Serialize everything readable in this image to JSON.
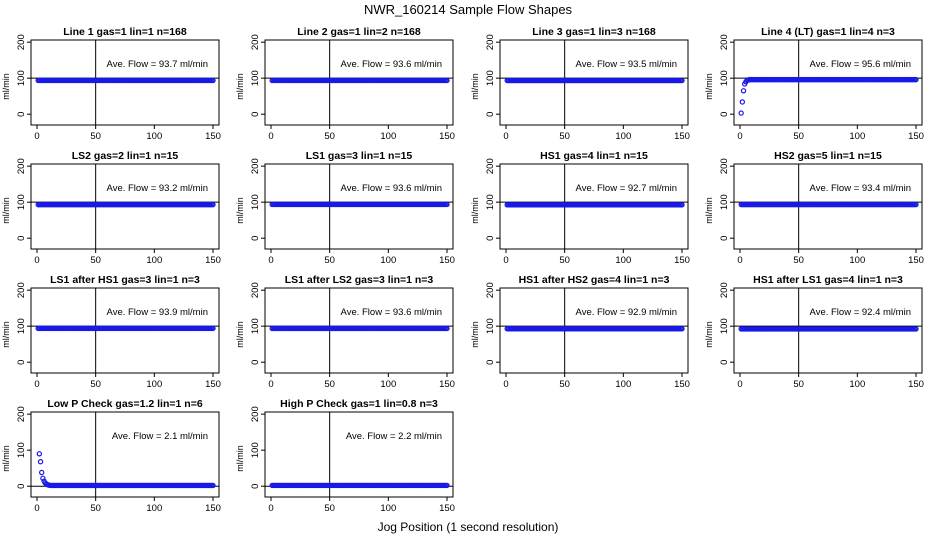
{
  "title": "NWR_160214  Sample Flow Shapes",
  "xlabel": "Jog Position (1 second resolution)",
  "chart_data": [
    {
      "type": "scatter",
      "title": "Line 1 gas=1 lin=1 n=168",
      "ylabel": "ml/min",
      "annotation": "Ave. Flow = 93.7  ml/min",
      "xlim": [
        0,
        150
      ],
      "ylim": [
        0,
        200
      ],
      "xticks": [
        0,
        50,
        100,
        150
      ],
      "yticks": [
        0,
        100,
        200
      ],
      "vline": 50,
      "hline": 100,
      "series": [
        {
          "x": [
            1,
            150
          ],
          "y": [
            93.7,
            93.7
          ]
        }
      ]
    },
    {
      "type": "scatter",
      "title": "Line 2 gas=1 lin=2 n=168",
      "ylabel": "ml/min",
      "annotation": "Ave. Flow = 93.6  ml/min",
      "xlim": [
        0,
        150
      ],
      "ylim": [
        0,
        200
      ],
      "xticks": [
        0,
        50,
        100,
        150
      ],
      "yticks": [
        0,
        100,
        200
      ],
      "vline": 50,
      "hline": 100,
      "series": [
        {
          "x": [
            1,
            150
          ],
          "y": [
            93.6,
            93.6
          ]
        }
      ]
    },
    {
      "type": "scatter",
      "title": "Line 3 gas=1 lin=3 n=168",
      "ylabel": "ml/min",
      "annotation": "Ave. Flow = 93.5  ml/min",
      "xlim": [
        0,
        150
      ],
      "ylim": [
        0,
        200
      ],
      "xticks": [
        0,
        50,
        100,
        150
      ],
      "yticks": [
        0,
        100,
        200
      ],
      "vline": 50,
      "hline": 100,
      "series": [
        {
          "x": [
            1,
            150
          ],
          "y": [
            93.5,
            93.5
          ]
        }
      ]
    },
    {
      "type": "scatter",
      "title": "Line 4 (LT) gas=1 lin=4 n=3",
      "ylabel": "ml/min",
      "annotation": "Ave. Flow = 95.6  ml/min",
      "xlim": [
        0,
        150
      ],
      "ylim": [
        0,
        200
      ],
      "xticks": [
        0,
        50,
        100,
        150
      ],
      "yticks": [
        0,
        100,
        200
      ],
      "vline": 50,
      "hline": 100,
      "series": [
        {
          "x": [
            1,
            2,
            3,
            4,
            5,
            6,
            7,
            8,
            150
          ],
          "y": [
            3,
            34,
            65,
            84,
            90,
            94,
            95,
            96,
            96
          ]
        }
      ]
    },
    {
      "type": "scatter",
      "title": "LS2 gas=2 lin=1 n=15",
      "ylabel": "ml/min",
      "annotation": "Ave. Flow = 93.2  ml/min",
      "xlim": [
        0,
        150
      ],
      "ylim": [
        0,
        200
      ],
      "xticks": [
        0,
        50,
        100,
        150
      ],
      "yticks": [
        0,
        100,
        200
      ],
      "vline": 50,
      "hline": 100,
      "series": [
        {
          "x": [
            1,
            150
          ],
          "y": [
            93.2,
            93.2
          ]
        }
      ]
    },
    {
      "type": "scatter",
      "title": "LS1 gas=3 lin=1 n=15",
      "ylabel": "ml/min",
      "annotation": "Ave. Flow = 93.6  ml/min",
      "xlim": [
        0,
        150
      ],
      "ylim": [
        0,
        200
      ],
      "xticks": [
        0,
        50,
        100,
        150
      ],
      "yticks": [
        0,
        100,
        200
      ],
      "vline": 50,
      "hline": 100,
      "series": [
        {
          "x": [
            1,
            150
          ],
          "y": [
            93.6,
            93.6
          ]
        }
      ]
    },
    {
      "type": "scatter",
      "title": "HS1 gas=4 lin=1 n=15",
      "ylabel": "ml/min",
      "annotation": "Ave. Flow = 92.7  ml/min",
      "xlim": [
        0,
        150
      ],
      "ylim": [
        0,
        200
      ],
      "xticks": [
        0,
        50,
        100,
        150
      ],
      "yticks": [
        0,
        100,
        200
      ],
      "vline": 50,
      "hline": 100,
      "series": [
        {
          "x": [
            1,
            150
          ],
          "y": [
            92.7,
            92.7
          ]
        }
      ]
    },
    {
      "type": "scatter",
      "title": "HS2 gas=5 lin=1 n=15",
      "ylabel": "ml/min",
      "annotation": "Ave. Flow = 93.4  ml/min",
      "xlim": [
        0,
        150
      ],
      "ylim": [
        0,
        200
      ],
      "xticks": [
        0,
        50,
        100,
        150
      ],
      "yticks": [
        0,
        100,
        200
      ],
      "vline": 50,
      "hline": 100,
      "series": [
        {
          "x": [
            1,
            150
          ],
          "y": [
            93.4,
            93.4
          ]
        }
      ]
    },
    {
      "type": "scatter",
      "title": "LS1 after HS1 gas=3 lin=1 n=3",
      "ylabel": "ml/min",
      "annotation": "Ave. Flow = 93.9  ml/min",
      "xlim": [
        0,
        150
      ],
      "ylim": [
        0,
        200
      ],
      "xticks": [
        0,
        50,
        100,
        150
      ],
      "yticks": [
        0,
        100,
        200
      ],
      "vline": 50,
      "hline": 100,
      "series": [
        {
          "x": [
            1,
            150
          ],
          "y": [
            93.9,
            93.9
          ]
        }
      ]
    },
    {
      "type": "scatter",
      "title": "LS1 after LS2 gas=3 lin=1 n=3",
      "ylabel": "ml/min",
      "annotation": "Ave. Flow = 93.6  ml/min",
      "xlim": [
        0,
        150
      ],
      "ylim": [
        0,
        200
      ],
      "xticks": [
        0,
        50,
        100,
        150
      ],
      "yticks": [
        0,
        100,
        200
      ],
      "vline": 50,
      "hline": 100,
      "series": [
        {
          "x": [
            1,
            150
          ],
          "y": [
            93.6,
            93.6
          ]
        }
      ]
    },
    {
      "type": "scatter",
      "title": "HS1 after HS2 gas=4 lin=1 n=3",
      "ylabel": "ml/min",
      "annotation": "Ave. Flow = 92.9  ml/min",
      "xlim": [
        0,
        150
      ],
      "ylim": [
        0,
        200
      ],
      "xticks": [
        0,
        50,
        100,
        150
      ],
      "yticks": [
        0,
        100,
        200
      ],
      "vline": 50,
      "hline": 100,
      "series": [
        {
          "x": [
            1,
            150
          ],
          "y": [
            92.9,
            92.9
          ]
        }
      ]
    },
    {
      "type": "scatter",
      "title": "HS1 after LS1 gas=4 lin=1 n=3",
      "ylabel": "ml/min",
      "annotation": "Ave. Flow = 92.4  ml/min",
      "xlim": [
        0,
        150
      ],
      "ylim": [
        0,
        200
      ],
      "xticks": [
        0,
        50,
        100,
        150
      ],
      "yticks": [
        0,
        100,
        200
      ],
      "vline": 50,
      "hline": 100,
      "series": [
        {
          "x": [
            1,
            150
          ],
          "y": [
            92.4,
            92.4
          ]
        }
      ]
    },
    {
      "type": "scatter",
      "title": "Low P Check gas=1.2 lin=1 n=6",
      "ylabel": "ml/min",
      "annotation": "Ave. Flow =  2.1  ml/min",
      "xlim": [
        0,
        150
      ],
      "ylim": [
        0,
        200
      ],
      "xticks": [
        0,
        50,
        100,
        150
      ],
      "yticks": [
        0,
        100,
        200
      ],
      "vline": 50,
      "hline": 0,
      "series": [
        {
          "x": [
            2,
            3,
            4,
            5,
            6,
            7,
            8,
            9,
            10,
            12,
            15,
            150
          ],
          "y": [
            90,
            68,
            38,
            22,
            14,
            9,
            6,
            4,
            3,
            2,
            2,
            2
          ]
        }
      ]
    },
    {
      "type": "scatter",
      "title": "High P Check gas=1 lin=0.8 n=3",
      "ylabel": "ml/min",
      "annotation": "Ave. Flow =  2.2  ml/min",
      "xlim": [
        0,
        150
      ],
      "ylim": [
        0,
        200
      ],
      "xticks": [
        0,
        50,
        100,
        150
      ],
      "yticks": [
        0,
        100,
        200
      ],
      "vline": 50,
      "hline": 0,
      "series": [
        {
          "x": [
            1,
            150
          ],
          "y": [
            2.2,
            2.2
          ]
        }
      ]
    }
  ],
  "colors": {
    "points": "#1a1ae6",
    "axes": "#000000"
  }
}
